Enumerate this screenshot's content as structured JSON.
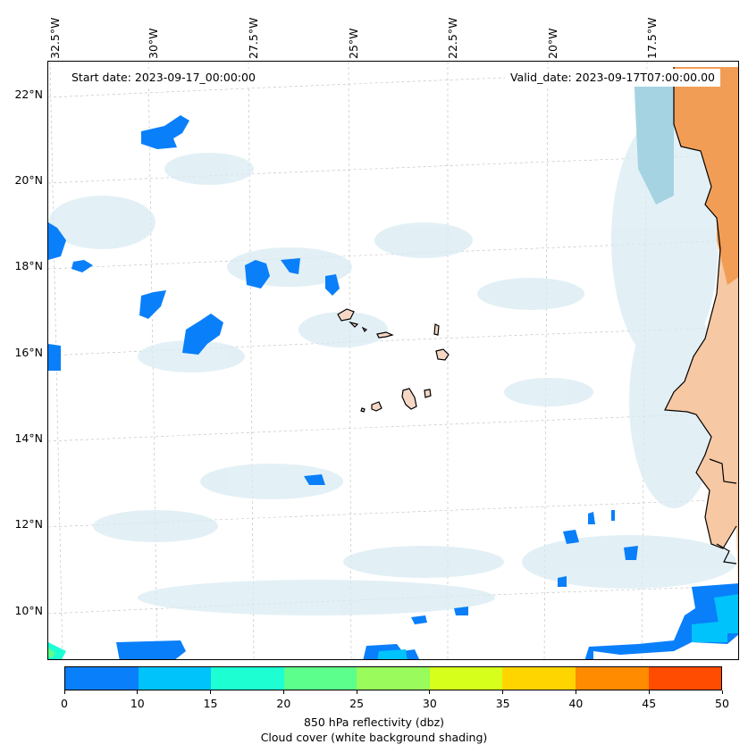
{
  "map": {
    "start_date": "Start date: 2023-09-17_00:00:00",
    "valid_date": "Valid_date: 2023-09-17T07:00:00.00",
    "lon_labels": [
      "32.5°W",
      "30°W",
      "27.5°W",
      "25°W",
      "22.5°W",
      "20°W",
      "17.5°W"
    ],
    "lat_labels": [
      "22°N",
      "20°N",
      "18°N",
      "16°N",
      "14°N",
      "12°N",
      "10°N"
    ],
    "colors": {
      "land": "#f29d56",
      "coast": "#000000",
      "cloud": "#d9ecf3"
    }
  },
  "colorbar": {
    "ticks": [
      "0",
      "10",
      "15",
      "20",
      "25",
      "30",
      "35",
      "40",
      "45",
      "50"
    ],
    "colors": [
      "#0a7ffa",
      "#00c3fb",
      "#1dffd3",
      "#5cfe8c",
      "#99fb5c",
      "#d7ff1c",
      "#ffd500",
      "#ff8c00",
      "#ff4c00"
    ],
    "label_line1": "850 hPa reflectivity (dbz)",
    "label_line2": "Cloud cover (white background shading)"
  }
}
